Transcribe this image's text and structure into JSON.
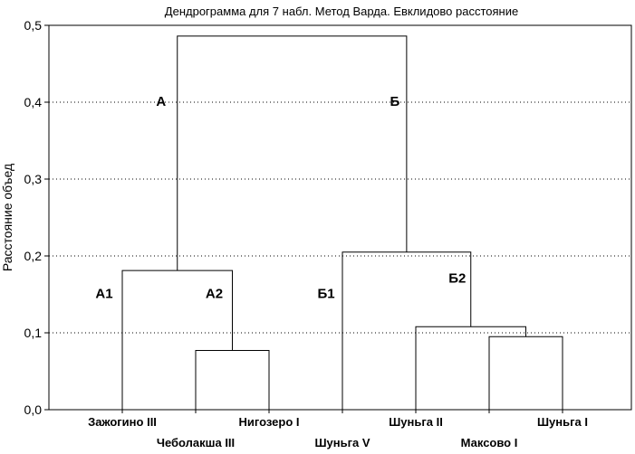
{
  "chart_data": {
    "type": "dendrogram",
    "title": "Дендрограмма для 7 набл. Метод Варда. Евклидово расстояние",
    "ylabel": "Расстояние объед",
    "ylim": [
      0,
      0.5
    ],
    "yticks": [
      0.0,
      0.1,
      0.2,
      0.3,
      0.4,
      0.5
    ],
    "ytick_labels": [
      "0,0",
      "0,1",
      "0,2",
      "0,3",
      "0,4",
      "0,5"
    ],
    "grid": "horizontal dotted",
    "leaves": [
      "Зажогино III",
      "Чеболакша III",
      "Нигозеро I",
      "Шуньга V",
      "Шуньга II",
      "Максово I",
      "Шуньга I"
    ],
    "merges": [
      {
        "left": 1,
        "right": 2,
        "height": 0.077
      },
      {
        "left": 0,
        "right": "m0",
        "height": 0.181
      },
      {
        "left": 5,
        "right": 6,
        "height": 0.095
      },
      {
        "left": 4,
        "right": "m2",
        "height": 0.108
      },
      {
        "left": 3,
        "right": "m3",
        "height": 0.205
      },
      {
        "left": "m1",
        "right": "m4",
        "height": 0.486
      }
    ],
    "cluster_labels": [
      {
        "text": "А",
        "near": "m1"
      },
      {
        "text": "Б",
        "near": "m4"
      },
      {
        "text": "А1",
        "near": "leaf0"
      },
      {
        "text": "А2",
        "near": "m0"
      },
      {
        "text": "Б1",
        "near": "leaf3"
      },
      {
        "text": "Б2",
        "near": "m3"
      }
    ]
  }
}
